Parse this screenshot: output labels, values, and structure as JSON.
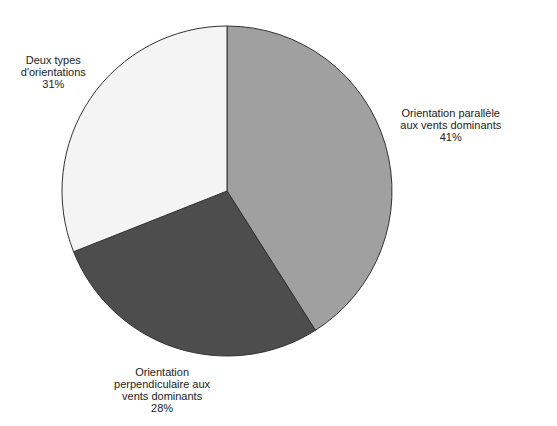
{
  "chart_data": {
    "type": "pie",
    "categories": [
      "Orientation parallèle aux vents dominants",
      "Orientation perpendiculaire aux vents dominants",
      "Deux types d'orientations"
    ],
    "values": [
      41,
      28,
      31
    ],
    "value_labels": [
      "41%",
      "28%",
      "31%"
    ],
    "colors": [
      "#a0a0a0",
      "#4d4d4d",
      "#f4f4f4"
    ],
    "data_labels": true
  }
}
